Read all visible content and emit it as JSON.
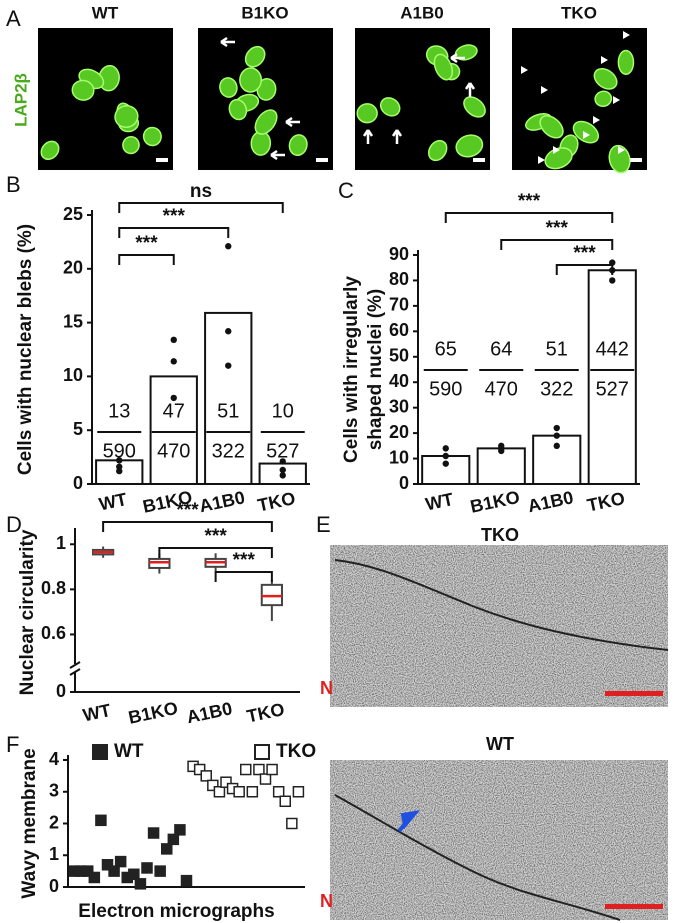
{
  "panel_labels": [
    "A",
    "B",
    "C",
    "D",
    "E",
    "F"
  ],
  "panel_a": {
    "stain": "LAP2β",
    "genotypes": [
      "WT",
      "B1KO",
      "A1B0",
      "TKO"
    ]
  },
  "panel_e": {
    "titles": [
      "TKO",
      "WT"
    ],
    "nucleus_label": "N"
  },
  "chart_data": [
    {
      "type": "bar",
      "ylabel": "Cells with nuclear blebs (%)",
      "categories": [
        "WT",
        "B1KO",
        "A1B0",
        "TKO"
      ],
      "values": [
        2.2,
        10,
        15.9,
        1.9
      ],
      "points": [
        [
          1.2,
          1.6,
          2.2
        ],
        [
          8,
          11.4,
          13.4
        ],
        [
          11,
          14.2,
          22.1
        ],
        [
          0.8,
          1.3,
          2.1
        ]
      ],
      "numerators": [
        13,
        47,
        51,
        10
      ],
      "denominators": [
        590,
        470,
        322,
        527
      ],
      "ylim": [
        0,
        25
      ],
      "yticks": [
        0,
        5,
        10,
        15,
        20,
        25
      ],
      "color": "#ffffff",
      "comparisons": [
        {
          "groups": [
            "WT",
            "B1KO"
          ],
          "label": "***"
        },
        {
          "groups": [
            "WT",
            "A1B0"
          ],
          "label": "***"
        },
        {
          "groups": [
            "WT",
            "TKO"
          ],
          "label": "ns"
        }
      ]
    },
    {
      "type": "bar",
      "ylabel": [
        "Cells with irregularly",
        "shaped nuclei (%)"
      ],
      "categories": [
        "WT",
        "B1KO",
        "A1B0",
        "TKO"
      ],
      "values": [
        11,
        14,
        19,
        84
      ],
      "points": [
        [
          8,
          11,
          14
        ],
        [
          13,
          14,
          15
        ],
        [
          15,
          19,
          22
        ],
        [
          80,
          84,
          87
        ]
      ],
      "numerators": [
        65,
        64,
        51,
        442
      ],
      "denominators": [
        590,
        470,
        322,
        527
      ],
      "ylim": [
        0,
        90
      ],
      "yticks": [
        0,
        10,
        20,
        30,
        40,
        50,
        60,
        70,
        80,
        90
      ],
      "color": "#ffffff",
      "comparisons": [
        {
          "groups": [
            "A1B0",
            "TKO"
          ],
          "label": "***"
        },
        {
          "groups": [
            "B1KO",
            "TKO"
          ],
          "label": "***"
        },
        {
          "groups": [
            "WT",
            "TKO"
          ],
          "label": "***"
        }
      ]
    },
    {
      "type": "box",
      "ylabel": "Nuclear circularity",
      "categories": [
        "WT",
        "B1KO",
        "A1B0",
        "TKO"
      ],
      "min": [
        0.94,
        0.87,
        0.88,
        0.66
      ],
      "q1": [
        0.955,
        0.895,
        0.9,
        0.73
      ],
      "median": [
        0.965,
        0.92,
        0.92,
        0.77
      ],
      "q3": [
        0.975,
        0.935,
        0.935,
        0.82
      ],
      "max": [
        0.99,
        0.96,
        0.96,
        0.84
      ],
      "ylim": [
        0,
        1.05
      ],
      "axis_break": [
        0.05,
        0.5
      ],
      "yticks": [
        0,
        0.6,
        0.8,
        1
      ],
      "box_color": "#444444",
      "median_color": "#e02020",
      "comparisons": [
        {
          "groups": [
            "A1B0",
            "TKO"
          ],
          "label": "***"
        },
        {
          "groups": [
            "B1KO",
            "TKO"
          ],
          "label": "***"
        },
        {
          "groups": [
            "WT",
            "TKO"
          ],
          "label": "***"
        }
      ]
    },
    {
      "type": "scatter",
      "ylabel": "Wavy membrane",
      "xlabel": "Electron micrographs",
      "xlim": [
        0,
        36
      ],
      "ylim": [
        0,
        4
      ],
      "yticks": [
        0,
        1,
        2,
        3,
        4
      ],
      "series": [
        {
          "name": "WT",
          "marker": "filled",
          "color": "#222222",
          "x": [
            1,
            2,
            3,
            4,
            5,
            6,
            7,
            8,
            9,
            10,
            11,
            12,
            13,
            14,
            15,
            16,
            17,
            18
          ],
          "values": [
            0.5,
            0.5,
            0.5,
            0.3,
            2.1,
            0.7,
            0.5,
            0.8,
            0.3,
            0.4,
            0.1,
            0.6,
            1.7,
            0.5,
            1.2,
            1.5,
            1.8,
            0.2
          ]
        },
        {
          "name": "TKO",
          "marker": "open",
          "color": "#222222",
          "x": [
            19,
            20,
            21,
            22,
            23,
            24,
            25,
            26,
            27,
            28,
            29,
            30,
            31,
            32,
            33,
            34,
            35
          ],
          "values": [
            3.8,
            3.7,
            3.5,
            3.2,
            3.0,
            3.3,
            3.1,
            3.0,
            3.7,
            3.0,
            3.7,
            3.4,
            3.7,
            3.0,
            2.7,
            2.0,
            3.0
          ]
        }
      ]
    }
  ]
}
